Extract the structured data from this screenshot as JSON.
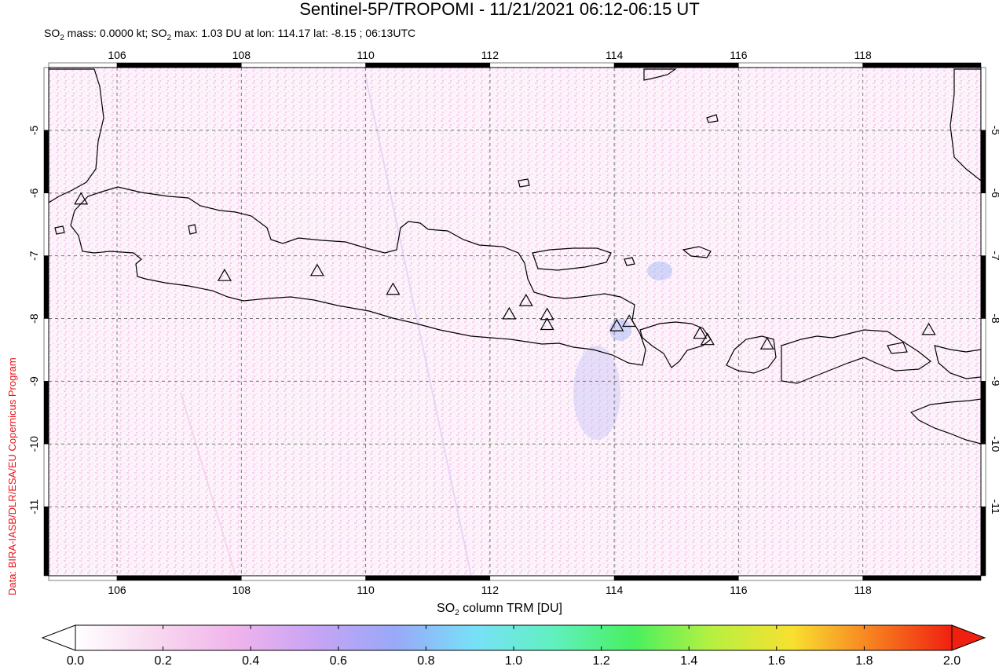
{
  "title": "Sentinel-5P/TROPOMI - 11/21/2021 06:12-06:15 UT",
  "subtitle": {
    "p1": "SO",
    "p2": "2",
    "p3": " mass: 0.0000 kt; SO",
    "p4": "2",
    "p5": " max: 1.03 DU at lon: 114.17 lat: -8.15 ; 06:13UTC"
  },
  "credit": "Data: BIRA-IASB/DLR/ESA/EU Copernicus Program",
  "map": {
    "lon_range": [
      104.9,
      119.9
    ],
    "lat_range": [
      -12.1,
      -4.0
    ],
    "lon_ticks": [
      106,
      108,
      110,
      112,
      114,
      116,
      118
    ],
    "lon_tick_labels": [
      "106",
      "108",
      "110",
      "112",
      "114",
      "116",
      "118"
    ],
    "lat_ticks": [
      -5,
      -6,
      -7,
      -8,
      -9,
      -10,
      -11
    ],
    "lat_tick_labels": [
      "-5",
      "-6",
      "-7",
      "-8",
      "-9",
      "-10",
      "-11"
    ],
    "gridlines": "dashed",
    "coastline_color": "#000000",
    "volcano_symbol": "triangle",
    "volcanoes": [
      {
        "lon": 105.42,
        "lat": -6.1
      },
      {
        "lon": 107.73,
        "lat": -7.32
      },
      {
        "lon": 109.22,
        "lat": -7.24
      },
      {
        "lon": 110.44,
        "lat": -7.54
      },
      {
        "lon": 112.31,
        "lat": -7.93
      },
      {
        "lon": 112.58,
        "lat": -7.72
      },
      {
        "lon": 112.92,
        "lat": -7.94
      },
      {
        "lon": 112.92,
        "lat": -8.1
      },
      {
        "lon": 114.04,
        "lat": -8.12
      },
      {
        "lon": 114.24,
        "lat": -8.05
      },
      {
        "lon": 115.38,
        "lat": -8.24
      },
      {
        "lon": 115.5,
        "lat": -8.34
      },
      {
        "lon": 116.46,
        "lat": -8.41
      },
      {
        "lon": 119.06,
        "lat": -8.18
      }
    ]
  },
  "colorbar": {
    "label_p1": "SO",
    "label_p2": "2",
    "label_p3": " column TRM [DU]",
    "min": 0.0,
    "max": 2.0,
    "ticks": [
      0.0,
      0.2,
      0.4,
      0.6,
      0.8,
      1.0,
      1.2,
      1.4,
      1.6,
      1.8,
      2.0
    ],
    "tick_labels": [
      "0.0",
      "0.2",
      "0.4",
      "0.6",
      "0.8",
      "1.0",
      "1.2",
      "1.4",
      "1.6",
      "1.8",
      "2.0"
    ],
    "colors": [
      "#ffffff",
      "#f8d8f0",
      "#f0b4ec",
      "#c8a4f4",
      "#9aa8f8",
      "#78e0f8",
      "#60f0c0",
      "#48f060",
      "#b8f040",
      "#f8e030",
      "#f88020",
      "#f02010"
    ]
  }
}
